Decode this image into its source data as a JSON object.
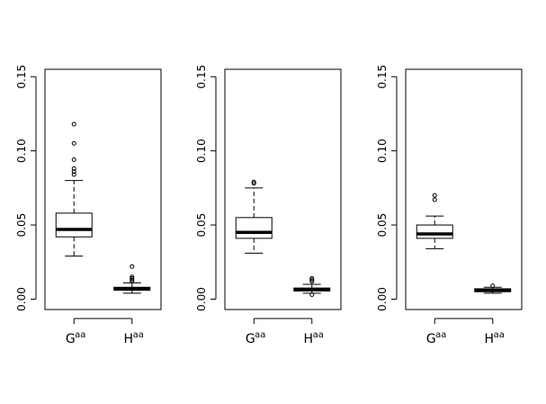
{
  "chart_data": [
    {
      "type": "box",
      "categories": [
        "G",
        "H"
      ],
      "category_superscripts": [
        "aa",
        "aa"
      ],
      "ylim": [
        -0.007,
        0.155
      ],
      "yticks": [
        0.0,
        0.05,
        0.1,
        0.15
      ],
      "ytick_labels": [
        "0.00",
        "0.05",
        "0.10",
        "0.15"
      ],
      "grid": false,
      "boxes": [
        {
          "whisker_low": 0.029,
          "q1": 0.042,
          "median": 0.047,
          "q3": 0.058,
          "whisker_high": 0.08,
          "outliers": [
            0.084,
            0.086,
            0.088,
            0.094,
            0.105,
            0.118
          ]
        },
        {
          "whisker_low": 0.004,
          "q1": 0.006,
          "median": 0.007,
          "q3": 0.008,
          "whisker_high": 0.011,
          "outliers": [
            0.012,
            0.013,
            0.014,
            0.015,
            0.022
          ]
        }
      ]
    },
    {
      "type": "box",
      "categories": [
        "G",
        "H"
      ],
      "category_superscripts": [
        "aa",
        "aa"
      ],
      "ylim": [
        -0.007,
        0.155
      ],
      "yticks": [
        0.0,
        0.05,
        0.1,
        0.15
      ],
      "ytick_labels": [
        "0.00",
        "0.05",
        "0.10",
        "0.15"
      ],
      "grid": false,
      "boxes": [
        {
          "whisker_low": 0.031,
          "q1": 0.041,
          "median": 0.045,
          "q3": 0.055,
          "whisker_high": 0.075,
          "outliers": [
            0.078,
            0.079
          ]
        },
        {
          "whisker_low": 0.004,
          "q1": 0.0055,
          "median": 0.0065,
          "q3": 0.0075,
          "whisker_high": 0.01,
          "outliers": [
            0.003,
            0.012,
            0.013,
            0.014
          ]
        }
      ]
    },
    {
      "type": "box",
      "categories": [
        "G",
        "H"
      ],
      "category_superscripts": [
        "aa",
        "aa"
      ],
      "ylim": [
        -0.007,
        0.155
      ],
      "yticks": [
        0.0,
        0.05,
        0.1,
        0.15
      ],
      "ytick_labels": [
        "0.00",
        "0.05",
        "0.10",
        "0.15"
      ],
      "grid": false,
      "boxes": [
        {
          "whisker_low": 0.034,
          "q1": 0.041,
          "median": 0.044,
          "q3": 0.05,
          "whisker_high": 0.056,
          "outliers": [
            0.067,
            0.07
          ]
        },
        {
          "whisker_low": 0.004,
          "q1": 0.005,
          "median": 0.006,
          "q3": 0.007,
          "whisker_high": 0.008,
          "outliers": [
            0.009
          ]
        }
      ]
    }
  ]
}
